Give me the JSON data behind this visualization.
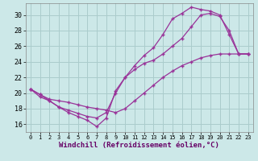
{
  "xlabel": "Windchill (Refroidissement éolien,°C)",
  "bg_color": "#cce8e8",
  "grid_color": "#aacccc",
  "line_color": "#993399",
  "xlim": [
    -0.5,
    23.5
  ],
  "ylim": [
    15.0,
    31.5
  ],
  "yticks": [
    16,
    18,
    20,
    22,
    24,
    26,
    28,
    30
  ],
  "xticks": [
    0,
    1,
    2,
    3,
    4,
    5,
    6,
    7,
    8,
    9,
    10,
    11,
    12,
    13,
    14,
    15,
    16,
    17,
    18,
    19,
    20,
    21,
    22,
    23
  ],
  "line1_x": [
    0,
    1,
    2,
    3,
    4,
    5,
    6,
    7,
    8,
    9,
    10,
    11,
    12,
    13,
    14,
    15,
    16,
    17,
    18,
    19,
    20,
    21,
    22,
    23
  ],
  "line1_y": [
    20.5,
    19.8,
    19.0,
    18.2,
    17.5,
    17.0,
    16.5,
    15.7,
    16.8,
    20.3,
    22.0,
    23.5,
    24.8,
    25.8,
    27.5,
    29.5,
    30.2,
    31.0,
    30.7,
    30.5,
    30.0,
    27.5,
    25.0,
    25.0
  ],
  "line2_x": [
    0,
    1,
    2,
    3,
    4,
    5,
    6,
    7,
    8,
    9,
    10,
    11,
    12,
    13,
    14,
    15,
    16,
    17,
    18,
    19,
    20,
    21,
    22,
    23
  ],
  "line2_y": [
    20.5,
    19.5,
    19.0,
    18.2,
    17.8,
    17.4,
    17.0,
    16.8,
    17.5,
    20.0,
    22.0,
    23.0,
    23.8,
    24.2,
    25.0,
    26.0,
    27.0,
    28.5,
    30.0,
    30.2,
    29.8,
    28.0,
    25.0,
    25.0
  ],
  "line3_x": [
    0,
    1,
    2,
    3,
    4,
    5,
    6,
    7,
    8,
    9,
    10,
    11,
    12,
    13,
    14,
    15,
    16,
    17,
    18,
    19,
    20,
    21,
    22,
    23
  ],
  "line3_y": [
    20.5,
    19.8,
    19.2,
    19.0,
    18.8,
    18.5,
    18.2,
    18.0,
    17.8,
    17.5,
    18.0,
    19.0,
    20.0,
    21.0,
    22.0,
    22.8,
    23.5,
    24.0,
    24.5,
    24.8,
    25.0,
    25.0,
    25.0,
    25.0
  ]
}
